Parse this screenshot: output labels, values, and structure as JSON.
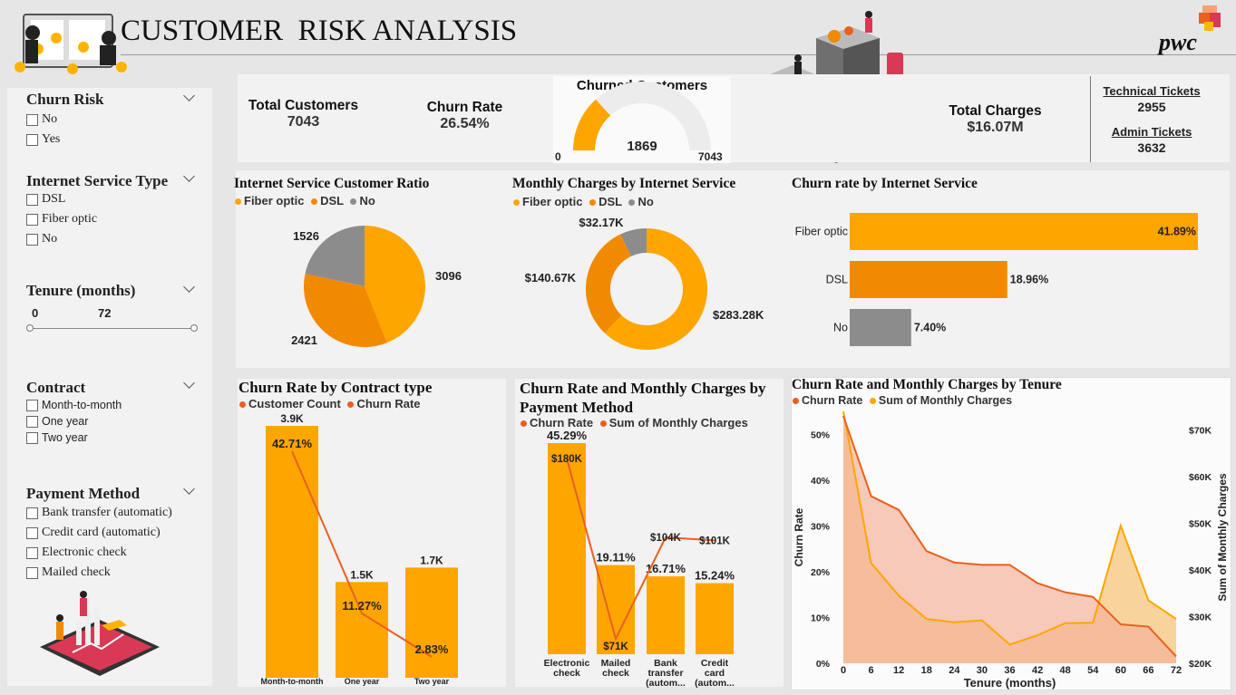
{
  "header": {
    "title": "CUSTOMER  RISK ANALYSIS",
    "brand": "pwc"
  },
  "colors": {
    "orange": "#ffa500",
    "dark_orange": "#f28a00",
    "deep_orange": "#e8611e",
    "gray": "#8c8c8c",
    "light_orange": "#f7c77d",
    "pink_area": "#f3b49b"
  },
  "slicers": {
    "churn_risk": {
      "title": "Churn Risk",
      "options": [
        "No",
        "Yes"
      ]
    },
    "internet": {
      "title": "Internet Service Type",
      "options": [
        "DSL",
        "Fiber optic",
        "No"
      ]
    },
    "tenure": {
      "title": "Tenure (months)",
      "min": "0",
      "max": "72"
    },
    "contract": {
      "title": "Contract",
      "options": [
        "Month-to-month",
        "One year",
        "Two year"
      ]
    },
    "payment": {
      "title": "Payment Method",
      "options": [
        "Bank transfer (automatic)",
        "Credit card (automatic)",
        "Electronic check",
        "Mailed check"
      ]
    }
  },
  "kpis": {
    "total_customers": {
      "label": "Total Customers",
      "value": "7043"
    },
    "churn_rate": {
      "label": "Churn Rate",
      "value": "26.54%"
    },
    "churned": {
      "label": "Churned Customers",
      "value": "1869",
      "min": "0",
      "max": "7043",
      "fraction": 0.2654
    },
    "total_charges": {
      "label": "Total Charges",
      "value": "$16.07M"
    },
    "technical": {
      "label": "Technical Tickets",
      "value": "2955"
    },
    "admin": {
      "label": "Admin Tickets",
      "value": "3632"
    }
  },
  "legend": {
    "fiber": "Fiber optic",
    "dsl": "DSL",
    "no": "No",
    "customer_count": "Customer Count",
    "churn_rate": "Churn Rate",
    "sum_monthly": "Sum of Monthly Charges"
  },
  "chart_data": [
    {
      "type": "pie",
      "title": "Internet Service Customer Ratio",
      "categories": [
        "Fiber optic",
        "DSL",
        "No"
      ],
      "values": [
        3096,
        2421,
        1526
      ],
      "labels": [
        "3096",
        "2421",
        "1526"
      ]
    },
    {
      "type": "pie",
      "title": "Monthly Charges by Internet Service",
      "donut": true,
      "categories": [
        "Fiber optic",
        "DSL",
        "No"
      ],
      "values": [
        283.28,
        140.67,
        32.17
      ],
      "labels": [
        "$283.28K",
        "$140.67K",
        "$32.17K"
      ]
    },
    {
      "type": "bar",
      "title": "Churn rate by Internet Service",
      "orientation": "horizontal",
      "categories": [
        "Fiber optic",
        "DSL",
        "No"
      ],
      "values": [
        41.89,
        18.96,
        7.4
      ],
      "labels": [
        "41.89%",
        "18.96%",
        "7.40%"
      ]
    },
    {
      "type": "bar",
      "title": "Churn Rate by Contract type",
      "categories": [
        "Month-to-month",
        "One year",
        "Two year"
      ],
      "series": [
        {
          "name": "Customer Count",
          "values": [
            3875,
            1473,
            1695
          ],
          "labels": [
            "3.9K",
            "1.5K",
            "1.7K"
          ]
        },
        {
          "name": "Churn Rate",
          "values": [
            42.71,
            11.27,
            2.83
          ],
          "labels": [
            "42.71%",
            "11.27%",
            "2.83%"
          ]
        }
      ]
    },
    {
      "type": "bar",
      "title": "Churn Rate and Monthly Charges by Payment Method",
      "categories": [
        "Electronic check",
        "Mailed check",
        "Bank transfer (autom...",
        "Credit card (autom..."
      ],
      "series": [
        {
          "name": "Churn Rate",
          "values": [
            45.29,
            19.11,
            16.71,
            15.24
          ],
          "labels": [
            "45.29%",
            "19.11%",
            "16.71%",
            "15.24%"
          ]
        },
        {
          "name": "Sum of Monthly Charges",
          "values": [
            180,
            71,
            104,
            101
          ],
          "labels": [
            "$180K",
            "$71K",
            "$104K",
            "$101K"
          ]
        }
      ]
    },
    {
      "type": "area",
      "title": "Churn Rate and Monthly Charges by Tenure",
      "xlabel": "Tenure (months)",
      "ylabel": "Churn Rate",
      "y2label": "Sum of Monthly Charges",
      "x": [
        0,
        6,
        12,
        18,
        24,
        30,
        36,
        42,
        48,
        54,
        60,
        66,
        72
      ],
      "xticks": [
        "0",
        "6",
        "12",
        "18",
        "24",
        "30",
        "36",
        "42",
        "48",
        "54",
        "60",
        "66",
        "72"
      ],
      "ylim": [
        0,
        55
      ],
      "yticks": [
        "0%",
        "10%",
        "20%",
        "30%",
        "40%",
        "50%"
      ],
      "y2lim": [
        20,
        74
      ],
      "y2ticks": [
        "$20K",
        "$30K",
        "$40K",
        "$50K",
        "$60K",
        "$70K"
      ],
      "series": [
        {
          "name": "Churn Rate",
          "values": [
            54,
            36.5,
            33.5,
            24.5,
            22,
            21.5,
            21.5,
            17.5,
            15.5,
            14.5,
            8.5,
            8,
            1.5
          ]
        },
        {
          "name": "Sum of Monthly Charges",
          "values": [
            75.5,
            41.5,
            34.5,
            29.5,
            28.8,
            29.2,
            24,
            26,
            28.6,
            28.7,
            49.5,
            33.5,
            29.5
          ]
        }
      ]
    }
  ]
}
